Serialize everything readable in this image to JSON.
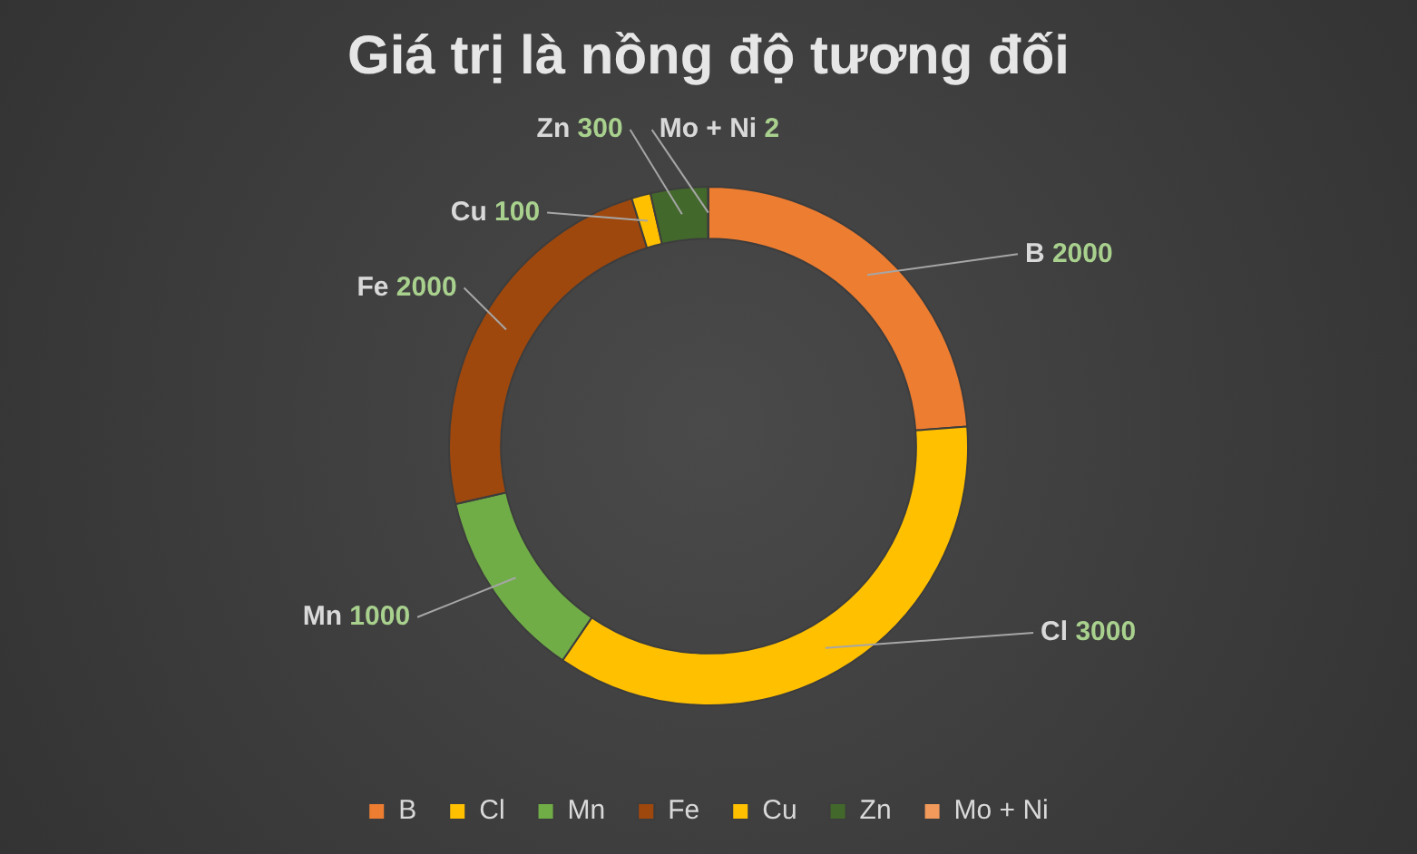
{
  "chart_data": {
    "type": "donut",
    "title": "Giá trị là nồng độ tương đối",
    "categories": [
      "B",
      "Cl",
      "Mn",
      "Fe",
      "Cu",
      "Zn",
      "Mo + Ni"
    ],
    "values": [
      2000,
      3000,
      1000,
      2000,
      100,
      300,
      2
    ],
    "colors": [
      "#ed7d31",
      "#ffc000",
      "#70ad47",
      "#9e480e",
      "#ffc000",
      "#43682b",
      "#f19a5b"
    ],
    "data_labels": true,
    "legend": "bottom"
  }
}
